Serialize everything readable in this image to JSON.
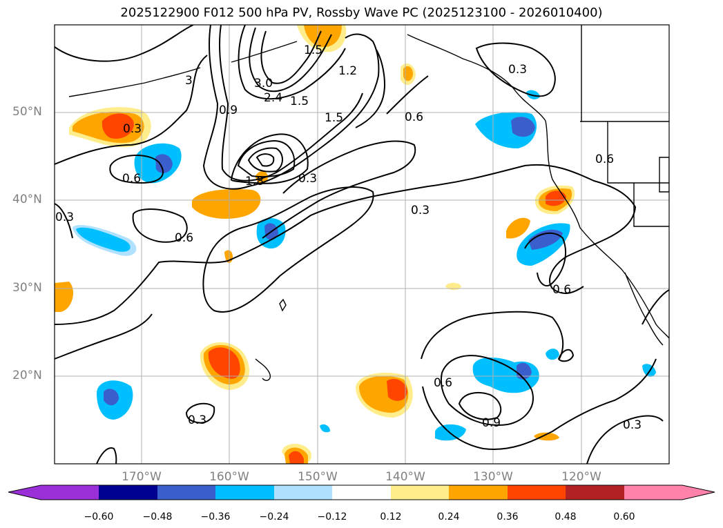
{
  "title": "2025122900 F012 500 hPa PV, Rossby Wave PC (2025123100 - 2026010400)",
  "lat_labels": [
    "50°N",
    "40°N",
    "30°N",
    "20°N"
  ],
  "lon_labels": [
    "170°W",
    "160°W",
    "150°W",
    "140°W",
    "130°W",
    "120°W"
  ],
  "colorbar": {
    "ticks": [
      "−0.60",
      "−0.48",
      "−0.36",
      "−0.24",
      "−0.12",
      "0.12",
      "0.24",
      "0.36",
      "0.48",
      "0.60"
    ],
    "colors": [
      "#9b30d9",
      "#000090",
      "#3a5fcd",
      "#00bfff",
      "#b0e2ff",
      "#ffffff",
      "#ffec8b",
      "#ffa500",
      "#ff4500",
      "#b22222",
      "#ff82ab"
    ]
  },
  "contour_labels": [
    "3.0",
    "2.4",
    "1.5",
    "1.2",
    "1.5",
    "0.9",
    "0.3",
    "0.3",
    "0.6",
    "0.6",
    "1.8",
    "3",
    "0.3",
    "0.3",
    "0.6",
    "0.6",
    "0.3",
    "0.6",
    "0.6",
    "0.9",
    "0.3",
    "0.3",
    "1.5"
  ]
}
